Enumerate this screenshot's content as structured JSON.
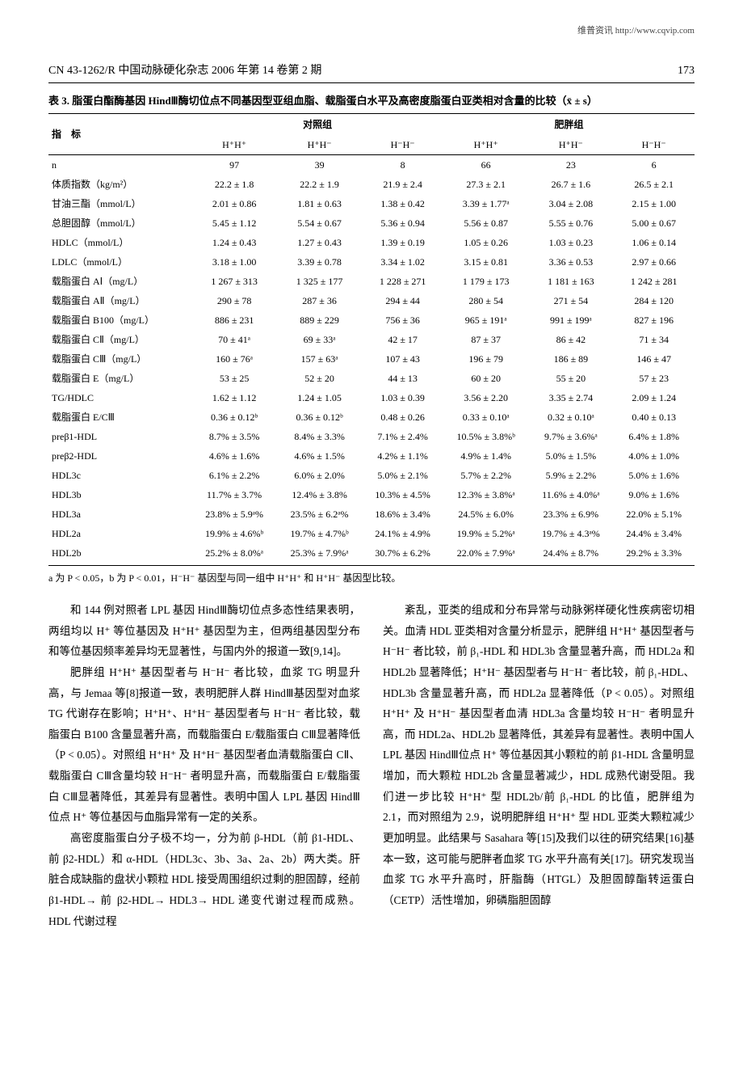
{
  "topRight": "维普资讯 http://www.cqvip.com",
  "journalInfo": "CN 43-1262/R 中国动脉硬化杂志 2006 年第 14 卷第 2 期",
  "pageNum": "173",
  "tableTitle": "表 3. 脂蛋白酯酶基因 HindⅢ酶切位点不同基因型亚组血脂、载脂蛋白水平及高密度脂蛋白亚类相对含量的比较（x̄ ± s）",
  "columns": {
    "indicatorLabel": "指　标",
    "group1": "对照组",
    "group2": "肥胖组",
    "sub": [
      "H⁺H⁺",
      "H⁺H⁻",
      "H⁻H⁻",
      "H⁺H⁺",
      "H⁺H⁻",
      "H⁻H⁻"
    ]
  },
  "rows": [
    {
      "label": "n",
      "v": [
        "97",
        "39",
        "8",
        "66",
        "23",
        "6"
      ]
    },
    {
      "label": "体质指数（kg/m²）",
      "v": [
        "22.2 ± 1.8",
        "22.2 ± 1.9",
        "21.9 ± 2.4",
        "27.3 ± 2.1",
        "26.7 ± 1.6",
        "26.5 ± 2.1"
      ]
    },
    {
      "label": "甘油三酯（mmol/L）",
      "v": [
        "2.01 ± 0.86",
        "1.81 ± 0.63",
        "1.38 ± 0.42",
        "3.39 ± 1.77ᵃ",
        "3.04 ± 2.08",
        "2.15 ± 1.00"
      ]
    },
    {
      "label": "总胆固醇（mmol/L）",
      "v": [
        "5.45 ± 1.12",
        "5.54 ± 0.67",
        "5.36 ± 0.94",
        "5.56 ± 0.87",
        "5.55 ± 0.76",
        "5.00 ± 0.67"
      ]
    },
    {
      "label": "HDLC（mmol/L）",
      "v": [
        "1.24 ± 0.43",
        "1.27 ± 0.43",
        "1.39 ± 0.19",
        "1.05 ± 0.26",
        "1.03 ± 0.23",
        "1.06 ± 0.14"
      ]
    },
    {
      "label": "LDLC（mmol/L）",
      "v": [
        "3.18 ± 1.00",
        "3.39 ± 0.78",
        "3.34 ± 1.02",
        "3.15 ± 0.81",
        "3.36 ± 0.53",
        "2.97 ± 0.66"
      ]
    },
    {
      "label": "载脂蛋白 AⅠ（mg/L）",
      "v": [
        "1 267 ± 313",
        "1 325 ± 177",
        "1 228 ± 271",
        "1 179 ± 173",
        "1 181 ± 163",
        "1 242 ± 281"
      ]
    },
    {
      "label": "载脂蛋白 AⅡ（mg/L）",
      "v": [
        "290 ± 78",
        "287 ± 36",
        "294 ± 44",
        "280 ± 54",
        "271 ± 54",
        "284 ± 120"
      ]
    },
    {
      "label": "载脂蛋白 B100（mg/L）",
      "v": [
        "886 ± 231",
        "889 ± 229",
        "756 ± 36",
        "965 ± 191ᵃ",
        "991 ± 199ᵃ",
        "827 ± 196"
      ]
    },
    {
      "label": "载脂蛋白 CⅡ（mg/L）",
      "v": [
        "70 ± 41ᵃ",
        "69 ± 33ᵃ",
        "42 ± 17",
        "87 ± 37",
        "86 ± 42",
        "71 ± 34"
      ]
    },
    {
      "label": "载脂蛋白 CⅢ（mg/L）",
      "v": [
        "160 ± 76ᵃ",
        "157 ± 63ᵃ",
        "107 ± 43",
        "196 ± 79",
        "186 ± 89",
        "146 ± 47"
      ]
    },
    {
      "label": "载脂蛋白 E（mg/L）",
      "v": [
        "53 ± 25",
        "52 ± 20",
        "44 ± 13",
        "60 ± 20",
        "55 ± 20",
        "57 ± 23"
      ]
    },
    {
      "label": "TG/HDLC",
      "v": [
        "1.62 ± 1.12",
        "1.24 ± 1.05",
        "1.03 ± 0.39",
        "3.56 ± 2.20",
        "3.35 ± 2.74",
        "2.09 ± 1.24"
      ]
    },
    {
      "label": "载脂蛋白 E/CⅢ",
      "v": [
        "0.36 ± 0.12ᵇ",
        "0.36 ± 0.12ᵇ",
        "0.48 ± 0.26",
        "0.33 ± 0.10ᵃ",
        "0.32 ± 0.10ᵃ",
        "0.40 ± 0.13"
      ]
    },
    {
      "label": "preβ1-HDL",
      "v": [
        "8.7% ± 3.5%",
        "8.4% ± 3.3%",
        "7.1% ± 2.4%",
        "10.5% ± 3.8%ᵇ",
        "9.7% ± 3.6%ᵃ",
        "6.4% ± 1.8%"
      ]
    },
    {
      "label": "preβ2-HDL",
      "v": [
        "4.6% ± 1.6%",
        "4.6% ± 1.5%",
        "4.2% ± 1.1%",
        "4.9% ± 1.4%",
        "5.0% ± 1.5%",
        "4.0% ± 1.0%"
      ]
    },
    {
      "label": "HDL3c",
      "v": [
        "6.1% ± 2.2%",
        "6.0% ± 2.0%",
        "5.0% ± 2.1%",
        "5.7% ± 2.2%",
        "5.9% ± 2.2%",
        "5.0% ± 1.6%"
      ]
    },
    {
      "label": "HDL3b",
      "v": [
        "11.7% ± 3.7%",
        "12.4% ± 3.8%",
        "10.3% ± 4.5%",
        "12.3% ± 3.8%ᵃ",
        "11.6% ± 4.0%ᵃ",
        "9.0% ± 1.6%"
      ]
    },
    {
      "label": "HDL3a",
      "v": [
        "23.8% ± 5.9ᵃ%",
        "23.5% ± 6.2ᵃ%",
        "18.6% ± 3.4%",
        "24.5% ± 6.0%",
        "23.3% ± 6.9%",
        "22.0% ± 5.1%"
      ]
    },
    {
      "label": "HDL2a",
      "v": [
        "19.9% ± 4.6%ᵇ",
        "19.7% ± 4.7%ᵇ",
        "24.1% ± 4.9%",
        "19.9% ± 5.2%ᵃ",
        "19.7% ± 4.3ᵃ%",
        "24.4% ± 3.4%"
      ]
    },
    {
      "label": "HDL2b",
      "v": [
        "25.2% ± 8.0%ᵃ",
        "25.3% ± 7.9%ᵃ",
        "30.7% ± 6.2%",
        "22.0% ± 7.9%ᵃ",
        "24.4% ± 8.7%",
        "29.2% ± 3.3%"
      ]
    }
  ],
  "tableNote": "a 为 P < 0.05，b 为 P < 0.01，H⁻H⁻ 基因型与同一组中 H⁺H⁺ 和 H⁺H⁻ 基因型比较。",
  "leftCol": [
    "和 144 例对照者 LPL 基因 HindⅢ酶切位点多态性结果表明，两组均以 H⁺ 等位基因及 H⁺H⁺ 基因型为主，但两组基因型分布和等位基因频率差异均无显著性，与国内外的报道一致[9,14]。",
    "肥胖组 H⁺H⁺ 基因型者与 H⁻H⁻ 者比较，血浆 TG 明显升高，与 Jemaa 等[8]报道一致，表明肥胖人群 HindⅢ基因型对血浆 TG 代谢存在影响；H⁺H⁺、H⁺H⁻ 基因型者与 H⁻H⁻ 者比较，载脂蛋白 B100 含量显著升高，而载脂蛋白 E/载脂蛋白 CⅢ显著降低（P < 0.05）。对照组 H⁺H⁺ 及 H⁺H⁻ 基因型者血清载脂蛋白 CⅡ、载脂蛋白 CⅢ含量均较 H⁻H⁻ 者明显升高，而载脂蛋白 E/载脂蛋白 CⅢ显著降低，其差异有显著性。表明中国人 LPL 基因 HindⅢ位点 H⁺ 等位基因与血脂异常有一定的关系。",
    "高密度脂蛋白分子极不均一，分为前 β-HDL（前 β1-HDL、前 β2-HDL）和 α-HDL（HDL3c、3b、3a、2a、2b）两大类。肝脏合成缺脂的盘状小颗粒 HDL 接受周围组织过剩的胆固醇，经前 β1-HDL→ 前 β2-HDL→ HDL3→ HDL 递变代谢过程而成熟。HDL 代谢过程"
  ],
  "rightCol": [
    "紊乱，亚类的组成和分布异常与动脉粥样硬化性疾病密切相关。血清 HDL 亚类相对含量分析显示，肥胖组 H⁺H⁺ 基因型者与 H⁻H⁻ 者比较，前 β₁-HDL 和 HDL3b 含量显著升高，而 HDL2a 和 HDL2b 显著降低；H⁺H⁻ 基因型者与 H⁻H⁻ 者比较，前 β₁-HDL、HDL3b 含量显著升高，而 HDL2a 显著降低（P < 0.05）。对照组 H⁺H⁺ 及 H⁺H⁻ 基因型者血清 HDL3a 含量均较 H⁻H⁻ 者明显升高，而 HDL2a、HDL2b 显著降低，其差异有显著性。表明中国人 LPL 基因 HindⅢ位点 H⁺ 等位基因其小颗粒的前 β1-HDL 含量明显增加，而大颗粒 HDL2b 含量显著减少，HDL 成熟代谢受阻。我们进一步比较 H⁺H⁺ 型 HDL2b/前 β₁-HDL 的比值，肥胖组为 2.1，而对照组为 2.9，说明肥胖组 H⁺H⁺ 型 HDL 亚类大颗粒减少更加明显。此结果与 Sasahara 等[15]及我们以往的研究结果[16]基本一致，这可能与肥胖者血浆 TG 水平升高有关[17]。研究发现当血浆 TG 水平升高时，肝脂酶（HTGL）及胆固醇酯转运蛋白（CETP）活性增加，卵磷脂胆固醇"
  ]
}
